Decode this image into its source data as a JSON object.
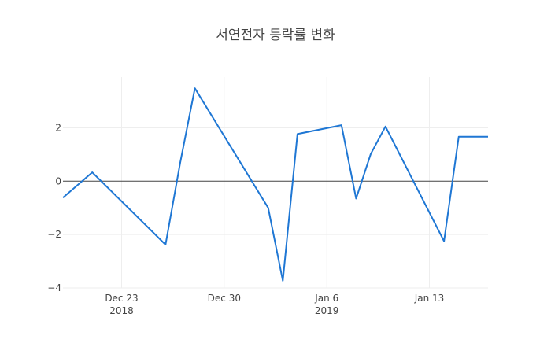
{
  "chart_data": {
    "type": "line",
    "title": "서연전자 등락률 변화",
    "xlabel": "",
    "ylabel": "",
    "x_range": [
      "2018-12-19",
      "2019-01-17"
    ],
    "ylim": [
      -4,
      4
    ],
    "y_ticks": [
      -4,
      -2,
      0,
      2
    ],
    "y_tick_labels": [
      "−4",
      "−2",
      "0",
      "2"
    ],
    "x_ticks": [
      {
        "date": "2018-12-23",
        "label": "Dec 23",
        "sublabel": "2018"
      },
      {
        "date": "2018-12-30",
        "label": "Dec 30",
        "sublabel": ""
      },
      {
        "date": "2019-01-06",
        "label": "Jan 6",
        "sublabel": "2019"
      },
      {
        "date": "2019-01-13",
        "label": "Jan 13",
        "sublabel": ""
      }
    ],
    "grid": true,
    "zero_line": true,
    "color": "#1f77d4",
    "x": [
      "2018-12-19",
      "2018-12-21",
      "2018-12-26",
      "2018-12-27",
      "2018-12-28",
      "2019-01-02",
      "2019-01-03",
      "2019-01-04",
      "2019-01-07",
      "2019-01-08",
      "2019-01-09",
      "2019-01-10",
      "2019-01-14",
      "2019-01-15",
      "2019-01-16",
      "2019-01-17"
    ],
    "values": [
      -0.62,
      0.33,
      -2.38,
      0.7,
      3.48,
      -1.0,
      -3.73,
      1.77,
      2.1,
      -0.65,
      1.02,
      2.05,
      -2.25,
      1.67,
      1.67,
      1.67
    ]
  }
}
